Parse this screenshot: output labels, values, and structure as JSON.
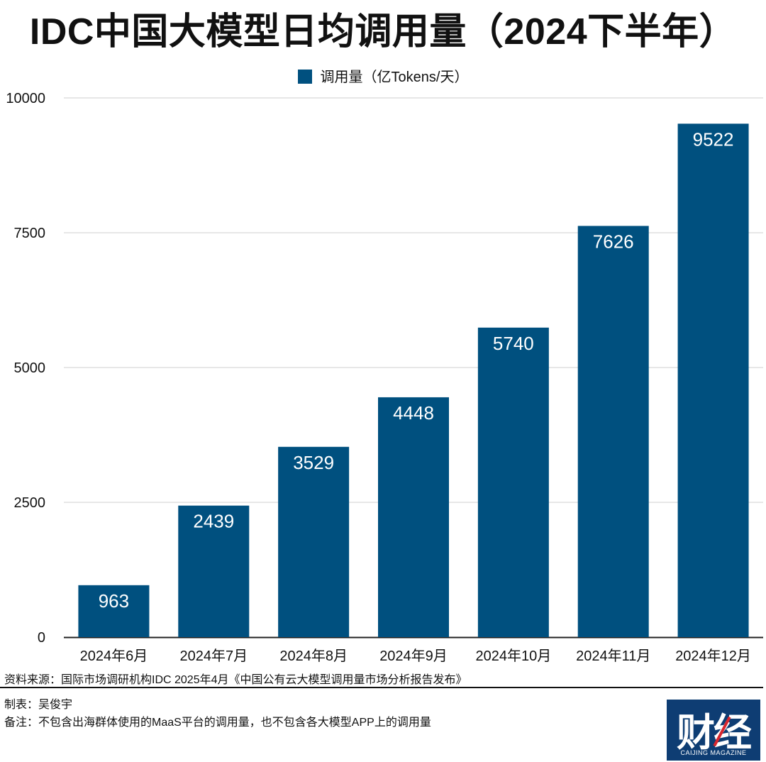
{
  "title": "IDC中国大模型日均调用量（2024下半年）",
  "colors": {
    "bar": "#00507f",
    "grid": "#cfcfcf",
    "axis": "#222222"
  },
  "chart_data": {
    "type": "bar",
    "categories": [
      "2024年6月",
      "2024年7月",
      "2024年8月",
      "2024年9月",
      "2024年10月",
      "2024年11月",
      "2024年12月"
    ],
    "series": [
      {
        "name": "调用量（亿Tokens/天）",
        "values": [
          963,
          2439,
          3529,
          4448,
          5740,
          7626,
          9522
        ]
      }
    ],
    "ylim": [
      0,
      10000
    ],
    "yticks": [
      "0",
      "2500",
      "5000",
      "7500",
      "10000"
    ],
    "grid": true,
    "legend_position": "top-center",
    "data_labels": true
  },
  "footer": {
    "source": "资料来源：国际市场调研机构IDC 2025年4月《中国公有云大模型调用量市场分析报告发布》",
    "maker": "制表：吴俊宇",
    "note": "备注：不包含出海群体使用的MaaS平台的调用量，也不包含各大模型APP上的调用量"
  },
  "logo": {
    "text": "财经",
    "subtext": "CAIJING MAGAZINE"
  }
}
